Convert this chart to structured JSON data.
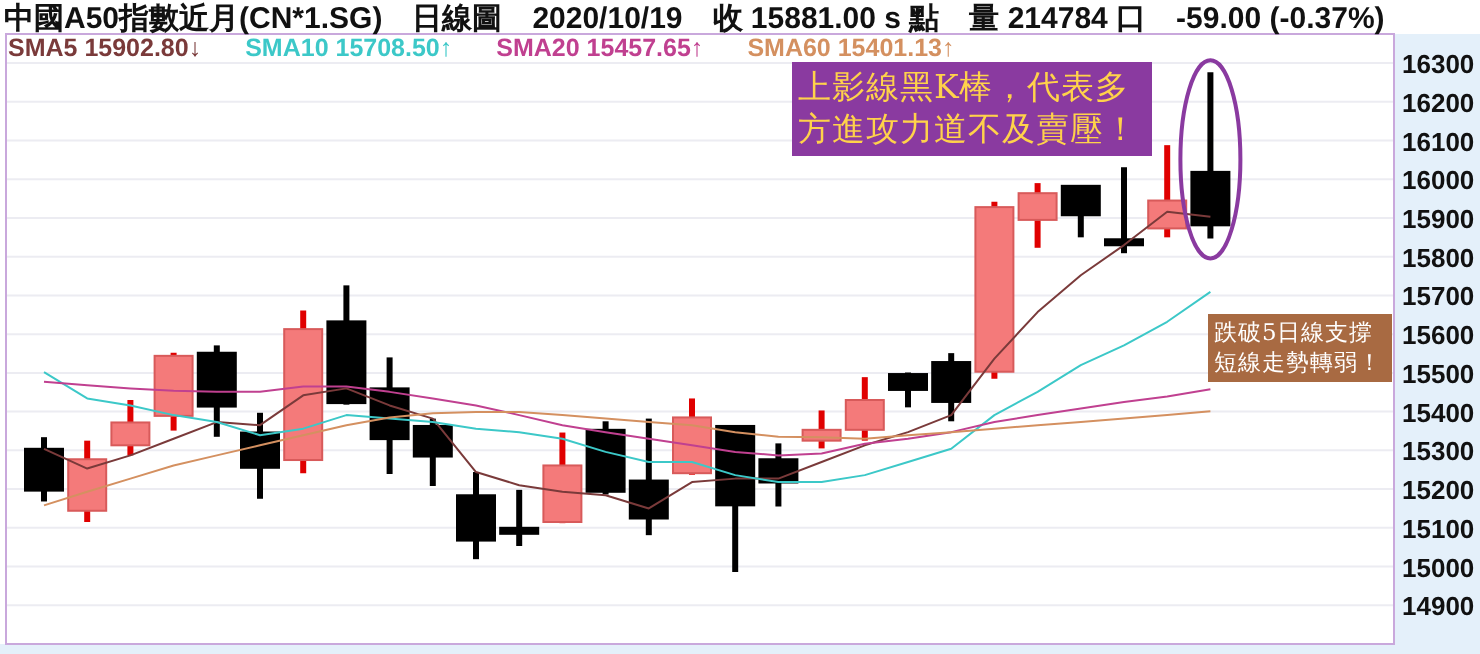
{
  "chart_data": {
    "type": "candlestick",
    "title": "中國A50指數近月(CN*1.SG)　日線圖　2020/10/19　收 15881.00 s 點　量 214784 口　-59.00 (-0.37%)",
    "categories": [
      null,
      null,
      null,
      null,
      null,
      null,
      null,
      null,
      null,
      null,
      null,
      null,
      null,
      null,
      null,
      null,
      null,
      null,
      null,
      null,
      null,
      null,
      null,
      null,
      null,
      null,
      null,
      null
    ],
    "ohlc": [
      [
        15304,
        15334,
        15168,
        15196
      ],
      [
        15144,
        15325,
        15115,
        15277
      ],
      [
        15313,
        15430,
        15287,
        15372
      ],
      [
        15389,
        15552,
        15351,
        15544
      ],
      [
        15552,
        15571,
        15335,
        15413
      ],
      [
        15346,
        15397,
        15175,
        15255
      ],
      [
        15275,
        15661,
        15241,
        15613
      ],
      [
        15633,
        15726,
        15418,
        15422
      ],
      [
        15460,
        15540,
        15239,
        15329
      ],
      [
        15363,
        15382,
        15208,
        15284
      ],
      [
        15184,
        15244,
        15019,
        15067
      ],
      [
        15100,
        15198,
        15053,
        15088
      ],
      [
        15115,
        15346,
        15112,
        15261
      ],
      [
        15353,
        15375,
        15186,
        15193
      ],
      [
        15222,
        15382,
        15081,
        15124
      ],
      [
        15241,
        15434,
        15237,
        15385
      ],
      [
        15363,
        15363,
        14986,
        15158
      ],
      [
        15277,
        15318,
        15155,
        15217
      ],
      [
        15325,
        15403,
        15305,
        15353
      ],
      [
        15353,
        15489,
        15325,
        15430
      ],
      [
        15497,
        15501,
        15411,
        15456
      ],
      [
        15528,
        15551,
        15375,
        15425
      ],
      [
        15503,
        15942,
        15485,
        15928
      ],
      [
        15895,
        15990,
        15823,
        15964
      ],
      [
        15983,
        15985,
        15850,
        15907
      ],
      [
        15845,
        16031,
        15809,
        15832
      ],
      [
        15873,
        16088,
        15850,
        15945
      ],
      [
        16019,
        16276,
        15847,
        15881
      ]
    ],
    "colors": [
      "#000000",
      "#f47a7a",
      "#f47a7a",
      "#f47a7a",
      "#000000",
      "#000000",
      "#f47a7a",
      "#000000",
      "#000000",
      "#000000",
      "#000000",
      "#000000",
      "#f47a7a",
      "#000000",
      "#000000",
      "#f47a7a",
      "#000000",
      "#000000",
      "#f47a7a",
      "#f47a7a",
      "#000000",
      "#000000",
      "#f47a7a",
      "#f47a7a",
      "#000000",
      "#000000",
      "#f47a7a",
      "#000000"
    ],
    "series": [
      {
        "name": "SMA5 15902.80↓",
        "type": "line",
        "color": "#7a3a3a",
        "values": [
          15304,
          15253,
          15287,
          15330,
          15373,
          15365,
          15442,
          15460,
          15416,
          15382,
          15244,
          15210,
          15193,
          15184,
          15150,
          15218,
          15227,
          15227,
          15270,
          15313,
          15347,
          15391,
          15537,
          15657,
          15752,
          15830,
          15916,
          15903
        ]
      },
      {
        "name": "SMA10 15708.50↑",
        "type": "line",
        "color": "#3cc8c8",
        "values": [
          15502,
          15434,
          15416,
          15391,
          15373,
          15339,
          15356,
          15391,
          15382,
          15373,
          15356,
          15347,
          15330,
          15296,
          15270,
          15270,
          15236,
          15218,
          15218,
          15236,
          15270,
          15304,
          15391,
          15451,
          15520,
          15571,
          15632,
          15709
        ]
      },
      {
        "name": "SMA20 15457.65↑",
        "type": "line",
        "color": "#c04090",
        "values": [
          15477,
          15468,
          15460,
          15454,
          15451,
          15451,
          15465,
          15465,
          15451,
          15434,
          15416,
          15391,
          15365,
          15347,
          15330,
          15313,
          15296,
          15287,
          15292,
          15317,
          15330,
          15347,
          15373,
          15391,
          15408,
          15425,
          15439,
          15458
        ]
      },
      {
        "name": "SMA60 15401.13↑",
        "type": "line",
        "color": "#d49060",
        "values": [
          15158,
          15193,
          15227,
          15261,
          15287,
          15313,
          15339,
          15365,
          15385,
          15396,
          15399,
          15399,
          15391,
          15382,
          15373,
          15365,
          15347,
          15335,
          15334,
          15330,
          15339,
          15347,
          15356,
          15365,
          15373,
          15382,
          15391,
          15401
        ]
      }
    ],
    "ylim": [
      14800,
      16375
    ],
    "yticks": [
      16300,
      16200,
      16100,
      16000,
      15900,
      15800,
      15700,
      15600,
      15500,
      15400,
      15300,
      15200,
      15100,
      15000,
      14900
    ],
    "grid": "y",
    "legend": "top left",
    "annotations": [
      "上影線黑K棒，代表多方進攻力道不及賣壓！",
      "跌破5日線支撐短線走勢轉弱！"
    ]
  }
}
